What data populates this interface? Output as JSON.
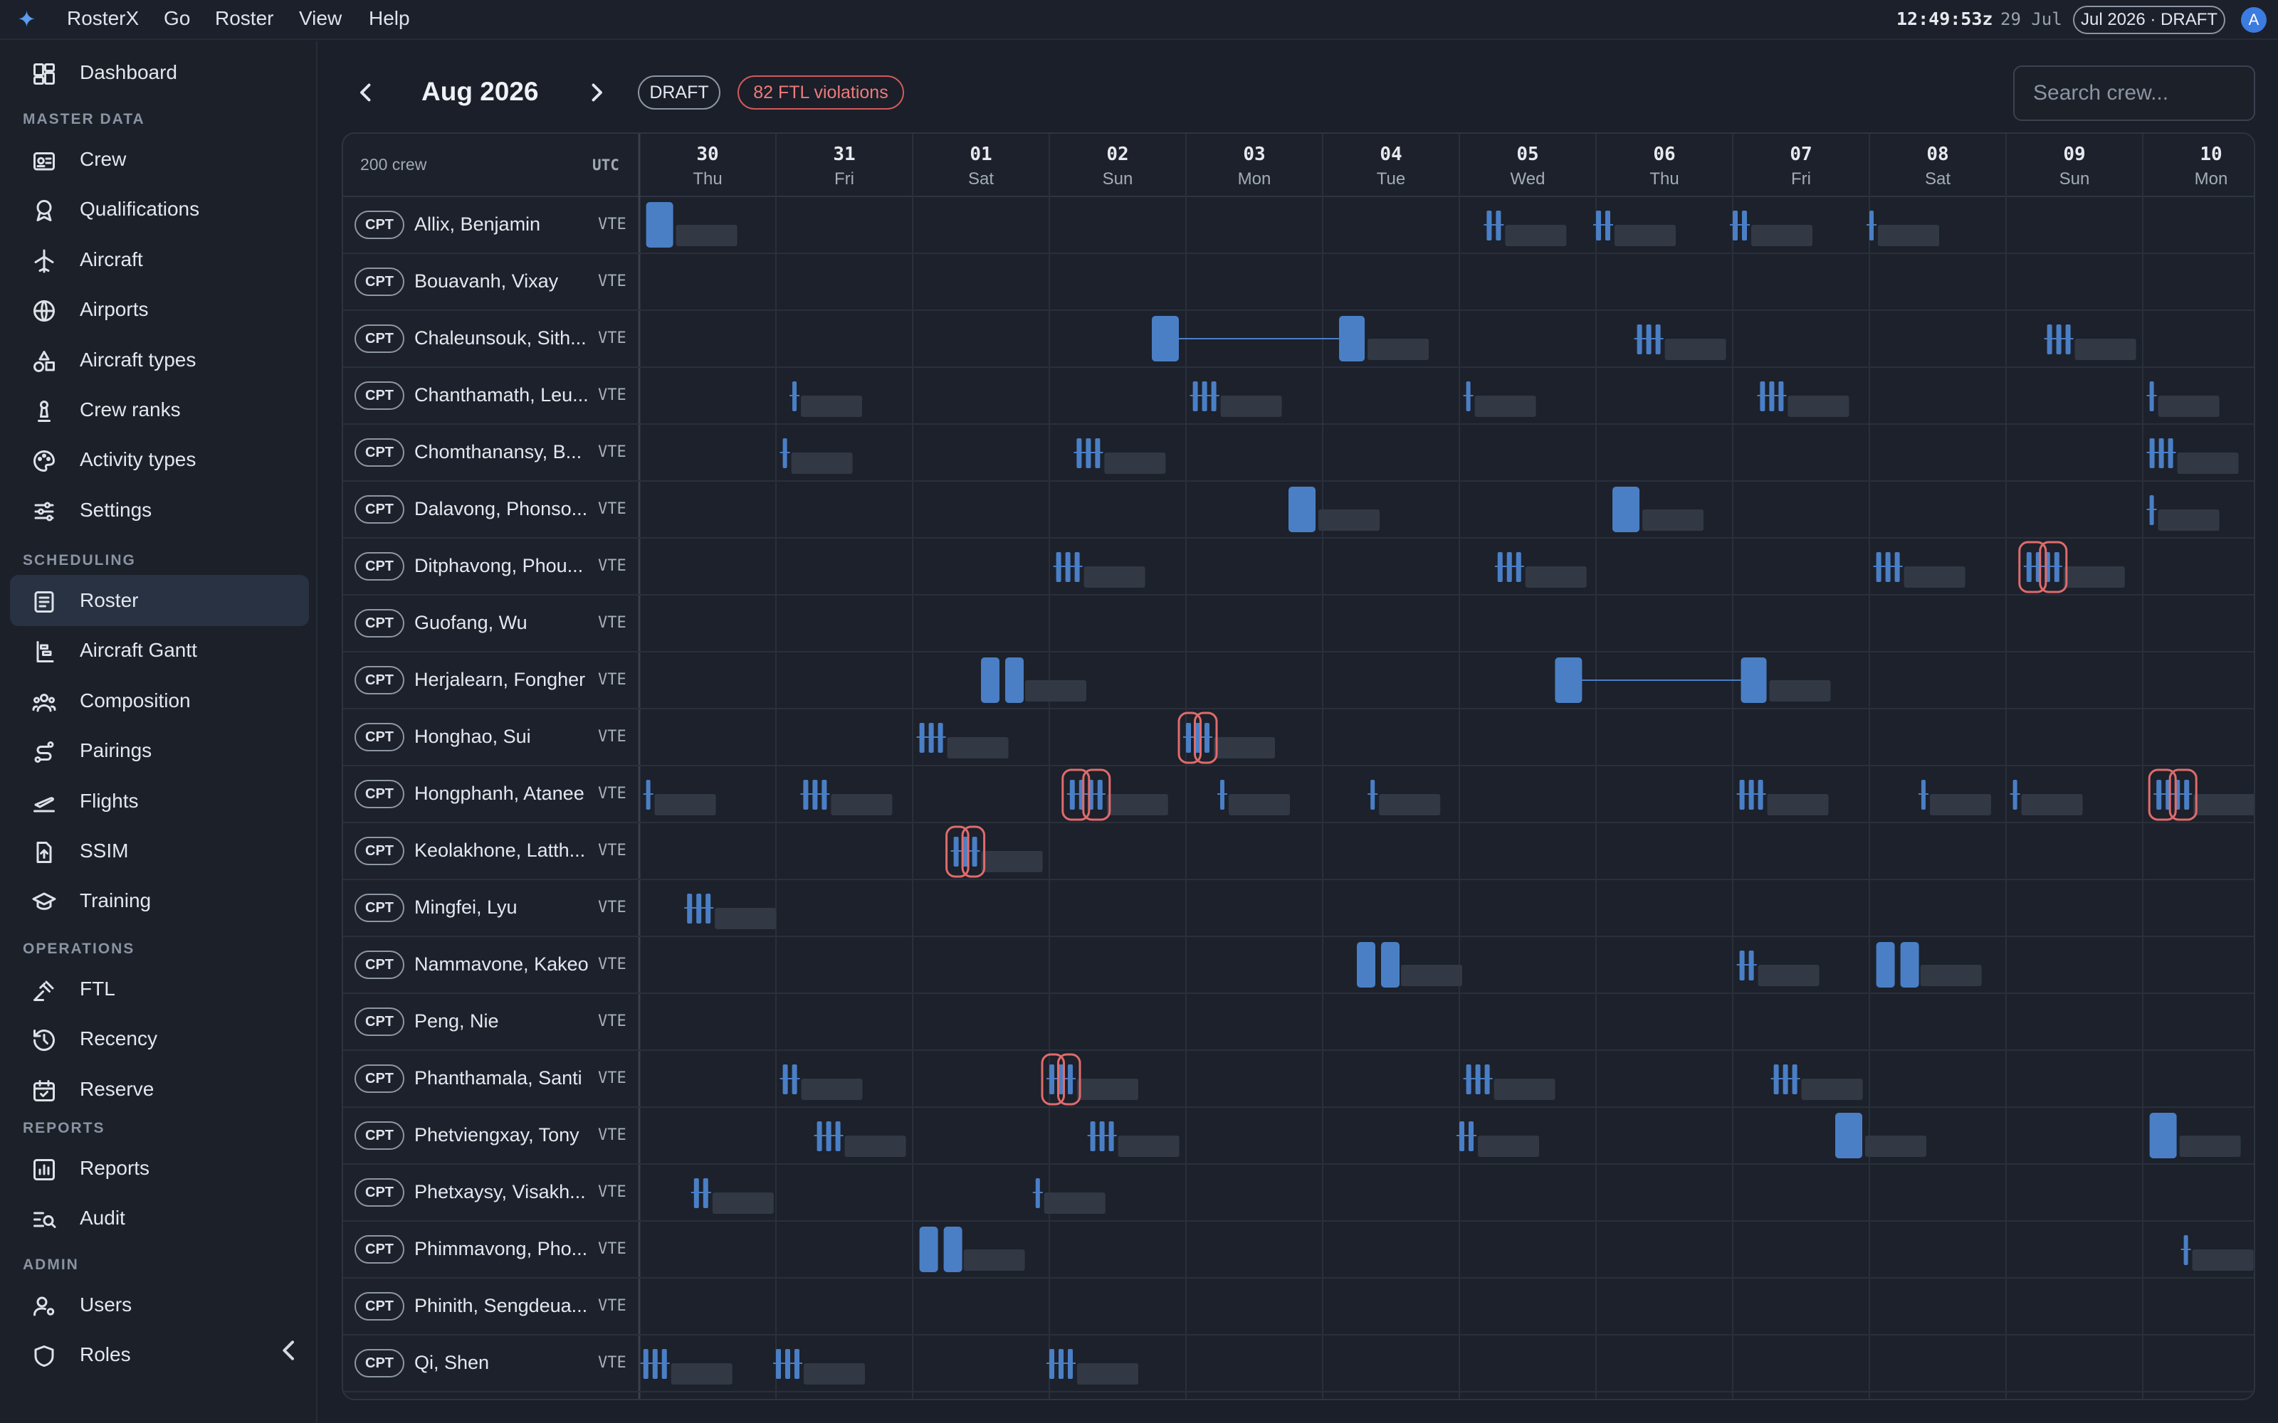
{
  "app": {
    "name": "RosterX",
    "menus": [
      "Go",
      "Roster",
      "View",
      "Help"
    ],
    "clock": "12:49:53z",
    "clock_date": "29 Jul",
    "period_badge": "Jul 2026 · DRAFT",
    "user_initial": "A"
  },
  "sidebar": {
    "top_item": {
      "label": "Dashboard",
      "icon": "dashboard-icon"
    },
    "sections": [
      {
        "title": "MASTER DATA",
        "items": [
          {
            "label": "Crew",
            "icon": "id-badge-icon"
          },
          {
            "label": "Qualifications",
            "icon": "award-icon"
          },
          {
            "label": "Aircraft",
            "icon": "plane-icon"
          },
          {
            "label": "Airports",
            "icon": "globe-icon"
          },
          {
            "label": "Aircraft types",
            "icon": "shapes-icon"
          },
          {
            "label": "Crew ranks",
            "icon": "chess-pawn-icon"
          },
          {
            "label": "Activity types",
            "icon": "palette-icon"
          },
          {
            "label": "Settings",
            "icon": "sliders-icon"
          }
        ]
      },
      {
        "title": "SCHEDULING",
        "items": [
          {
            "label": "Roster",
            "icon": "roster-icon",
            "active": true
          },
          {
            "label": "Aircraft Gantt",
            "icon": "gantt-icon"
          },
          {
            "label": "Composition",
            "icon": "users-icon"
          },
          {
            "label": "Pairings",
            "icon": "route-icon"
          },
          {
            "label": "Flights",
            "icon": "plane-takeoff-icon"
          },
          {
            "label": "SSIM",
            "icon": "file-upload-icon"
          },
          {
            "label": "Training",
            "icon": "graduation-cap-icon"
          }
        ]
      },
      {
        "title": "OPERATIONS",
        "items": [
          {
            "label": "FTL",
            "icon": "gavel-icon"
          },
          {
            "label": "Recency",
            "icon": "history-icon"
          },
          {
            "label": "Reserve",
            "icon": "calendar-check-icon"
          }
        ]
      },
      {
        "title": "REPORTS",
        "items": [
          {
            "label": "Reports",
            "icon": "bar-chart-icon"
          },
          {
            "label": "Audit",
            "icon": "search-list-icon"
          }
        ]
      },
      {
        "title": "ADMIN",
        "items": [
          {
            "label": "Users",
            "icon": "user-cog-icon"
          },
          {
            "label": "Roles",
            "icon": "shield-icon"
          }
        ]
      }
    ]
  },
  "roster": {
    "month": "Aug 2026",
    "status_badge": "DRAFT",
    "violations_badge": "82 FTL violations",
    "search_placeholder": "Search crew...",
    "crew_count": "200 crew",
    "timezone": "UTC",
    "days": [
      {
        "num": "30",
        "dow": "Thu"
      },
      {
        "num": "31",
        "dow": "Fri"
      },
      {
        "num": "01",
        "dow": "Sat"
      },
      {
        "num": "02",
        "dow": "Sun"
      },
      {
        "num": "03",
        "dow": "Mon"
      },
      {
        "num": "04",
        "dow": "Tue"
      },
      {
        "num": "05",
        "dow": "Wed"
      },
      {
        "num": "06",
        "dow": "Thu"
      },
      {
        "num": "07",
        "dow": "Fri"
      },
      {
        "num": "08",
        "dow": "Sat"
      },
      {
        "num": "09",
        "dow": "Sun"
      },
      {
        "num": "10",
        "dow": "Mon"
      }
    ],
    "crew": [
      {
        "rank": "CPT",
        "name": "Allix, Benjamin",
        "base": "VTE"
      },
      {
        "rank": "CPT",
        "name": "Bouavanh, Vixay",
        "base": "VTE"
      },
      {
        "rank": "CPT",
        "name": "Chaleunsouk, Sith...",
        "base": "VTE"
      },
      {
        "rank": "CPT",
        "name": "Chanthamath, Leu...",
        "base": "VTE"
      },
      {
        "rank": "CPT",
        "name": "Chomthanansy, B...",
        "base": "VTE"
      },
      {
        "rank": "CPT",
        "name": "Dalavong, Phonso...",
        "base": "VTE"
      },
      {
        "rank": "CPT",
        "name": "Ditphavong, Phou...",
        "base": "VTE"
      },
      {
        "rank": "CPT",
        "name": "Guofang, Wu",
        "base": "VTE"
      },
      {
        "rank": "CPT",
        "name": "Herjalearn, Fongher",
        "base": "VTE"
      },
      {
        "rank": "CPT",
        "name": "Honghao, Sui",
        "base": "VTE"
      },
      {
        "rank": "CPT",
        "name": "Hongphanh, Atanee",
        "base": "VTE"
      },
      {
        "rank": "CPT",
        "name": "Keolakhone, Latth...",
        "base": "VTE"
      },
      {
        "rank": "CPT",
        "name": "Mingfei, Lyu",
        "base": "VTE"
      },
      {
        "rank": "CPT",
        "name": "Nammavone, Kakeo",
        "base": "VTE"
      },
      {
        "rank": "CPT",
        "name": "Peng, Nie",
        "base": "VTE"
      },
      {
        "rank": "CPT",
        "name": "Phanthamala, Santi",
        "base": "VTE"
      },
      {
        "rank": "CPT",
        "name": "Phetviengxay, Tony",
        "base": "VTE"
      },
      {
        "rank": "CPT",
        "name": "Phetxaysy, Visakh...",
        "base": "VTE"
      },
      {
        "rank": "CPT",
        "name": "Phimmavong, Pho...",
        "base": "VTE"
      },
      {
        "rank": "CPT",
        "name": "Phinith, Sengdeua...",
        "base": "VTE"
      },
      {
        "rank": "CPT",
        "name": "Qi, Shen",
        "base": "VTE"
      }
    ],
    "duties": [
      [
        {
          "day": 0.05,
          "type": "block"
        },
        {
          "day": 6.2,
          "type": "flights",
          "n": 2
        },
        {
          "day": 7.0,
          "type": "flights",
          "n": 2
        },
        {
          "day": 8.0,
          "type": "flights",
          "n": 2
        },
        {
          "day": 9.0,
          "type": "flights",
          "n": 1
        }
      ],
      [],
      [
        {
          "day": 3.75,
          "type": "block",
          "link_to": 5.12
        },
        {
          "day": 7.3,
          "type": "flights",
          "n": 3
        },
        {
          "day": 10.3,
          "type": "flights",
          "n": 3
        }
      ],
      [
        {
          "day": 1.12,
          "type": "flights",
          "n": 1
        },
        {
          "day": 4.05,
          "type": "flights",
          "n": 3
        },
        {
          "day": 6.05,
          "type": "flights",
          "n": 1
        },
        {
          "day": 8.2,
          "type": "flights",
          "n": 3
        },
        {
          "day": 11.05,
          "type": "flights",
          "n": 1
        }
      ],
      [
        {
          "day": 1.05,
          "type": "flights",
          "n": 1
        },
        {
          "day": 3.2,
          "type": "flights",
          "n": 3
        },
        {
          "day": 11.05,
          "type": "flights",
          "n": 3
        }
      ],
      [
        {
          "day": 4.75,
          "type": "block"
        },
        {
          "day": 7.12,
          "type": "block"
        },
        {
          "day": 11.05,
          "type": "flights",
          "n": 1
        }
      ],
      [
        {
          "day": 3.05,
          "type": "flights",
          "n": 3
        },
        {
          "day": 6.28,
          "type": "flights",
          "n": 3
        },
        {
          "day": 9.05,
          "type": "flights",
          "n": 3
        },
        {
          "day": 10.15,
          "type": "flights",
          "n": 4,
          "violation": true
        }
      ],
      [],
      [
        {
          "day": 2.5,
          "type": "block2"
        },
        {
          "day": 6.7,
          "type": "block",
          "link_to": 8.06
        }
      ],
      [
        {
          "day": 2.05,
          "type": "flights",
          "n": 3
        },
        {
          "day": 4.0,
          "type": "flights",
          "n": 3,
          "violation": true
        }
      ],
      [
        {
          "day": 0.05,
          "type": "flights",
          "n": 1
        },
        {
          "day": 1.2,
          "type": "flights",
          "n": 3
        },
        {
          "day": 3.15,
          "type": "flights",
          "n": 4,
          "violation": true
        },
        {
          "day": 4.25,
          "type": "flights",
          "n": 1
        },
        {
          "day": 5.35,
          "type": "flights",
          "n": 1
        },
        {
          "day": 8.05,
          "type": "flights",
          "n": 3
        },
        {
          "day": 9.38,
          "type": "flights",
          "n": 1
        },
        {
          "day": 10.05,
          "type": "flights",
          "n": 1
        },
        {
          "day": 11.1,
          "type": "flights",
          "n": 4,
          "violation": true
        }
      ],
      [
        {
          "day": 2.3,
          "type": "flights",
          "n": 3,
          "violation": true
        }
      ],
      [
        {
          "day": 0.35,
          "type": "flights",
          "n": 3
        }
      ],
      [
        {
          "day": 5.25,
          "type": "block2"
        },
        {
          "day": 8.05,
          "type": "flights",
          "n": 2
        },
        {
          "day": 9.05,
          "type": "block2"
        }
      ],
      [],
      [
        {
          "day": 1.05,
          "type": "flights",
          "n": 2
        },
        {
          "day": 3.0,
          "type": "flights",
          "n": 3,
          "violation": true
        },
        {
          "day": 6.05,
          "type": "flights",
          "n": 3
        },
        {
          "day": 8.3,
          "type": "flights",
          "n": 3
        }
      ],
      [
        {
          "day": 1.3,
          "type": "flights",
          "n": 3
        },
        {
          "day": 3.3,
          "type": "flights",
          "n": 3
        },
        {
          "day": 6.0,
          "type": "flights",
          "n": 2
        },
        {
          "day": 8.75,
          "type": "block"
        },
        {
          "day": 11.05,
          "type": "block"
        }
      ],
      [
        {
          "day": 0.4,
          "type": "flights",
          "n": 2
        },
        {
          "day": 2.9,
          "type": "flights",
          "n": 1
        }
      ],
      [
        {
          "day": 2.05,
          "type": "block2"
        },
        {
          "day": 11.3,
          "type": "flights",
          "n": 1
        }
      ],
      [],
      [
        {
          "day": 0.03,
          "type": "flights",
          "n": 3
        },
        {
          "day": 1.0,
          "type": "flights",
          "n": 3
        },
        {
          "day": 3.0,
          "type": "flights",
          "n": 3
        }
      ]
    ],
    "colors": {
      "duty": "#4a7fc6",
      "duty_shadow": "#323945",
      "violation": "#e06b6b",
      "grid_line": "#2a303b"
    }
  }
}
